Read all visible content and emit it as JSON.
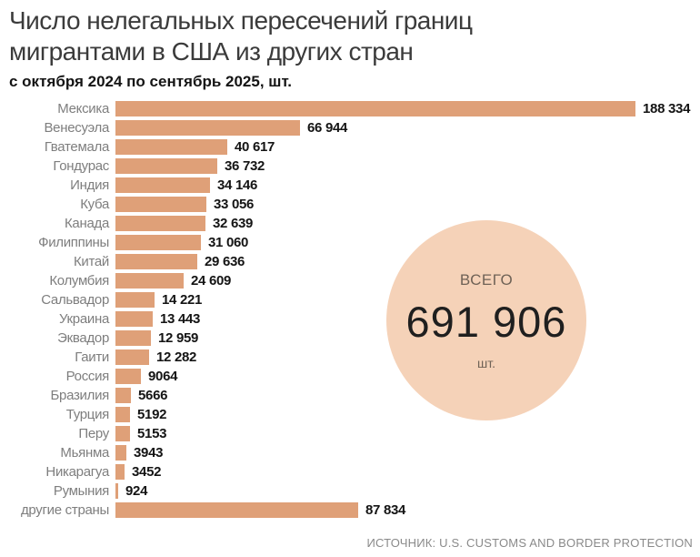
{
  "header": {
    "title_line1": "Число нелегальных пересечений границ",
    "title_line2": "мигрантами в США из других стран",
    "subtitle": "с октября 2024 по сентябрь 2025, шт."
  },
  "chart_data": {
    "type": "bar",
    "orientation": "horizontal",
    "title": "Число нелегальных пересечений границ мигрантами в США из других стран",
    "subtitle": "с октября 2024 по сентябрь 2025, шт.",
    "categories": [
      "Мексика",
      "Венесуэла",
      "Гватемала",
      "Гондурас",
      "Индия",
      "Куба",
      "Канада",
      "Филиппины",
      "Китай",
      "Колумбия",
      "Сальвадор",
      "Украина",
      "Эквадор",
      "Гаити",
      "Россия",
      "Бразилия",
      "Турция",
      "Перу",
      "Мьянма",
      "Никарагуа",
      "Румыния",
      "другие страны"
    ],
    "values": [
      188334,
      66944,
      40617,
      36732,
      34146,
      33056,
      32639,
      31060,
      29636,
      24609,
      14221,
      13443,
      12959,
      12282,
      9064,
      5666,
      5192,
      5153,
      3943,
      3452,
      924,
      87834
    ],
    "value_labels": [
      "188 334",
      "66 944",
      "40 617",
      "36 732",
      "34 146",
      "33 056",
      "32 639",
      "31 060",
      "29 636",
      "24 609",
      "14 221",
      "13 443",
      "12 959",
      "12 282",
      "9064",
      "5666",
      "5192",
      "5153",
      "3943",
      "3452",
      "924",
      "87 834"
    ],
    "xlim": [
      0,
      188334
    ],
    "grid": false,
    "legend": false,
    "bar_color": "#dfa078",
    "total": 691906
  },
  "total_badge": {
    "label": "ВСЕГО",
    "value": "691 906",
    "unit": "шт.",
    "circle_color": "#f5d2b8"
  },
  "source": "ИСТОЧНИК: U.S. CUSTOMS AND BORDER PROTECTION"
}
